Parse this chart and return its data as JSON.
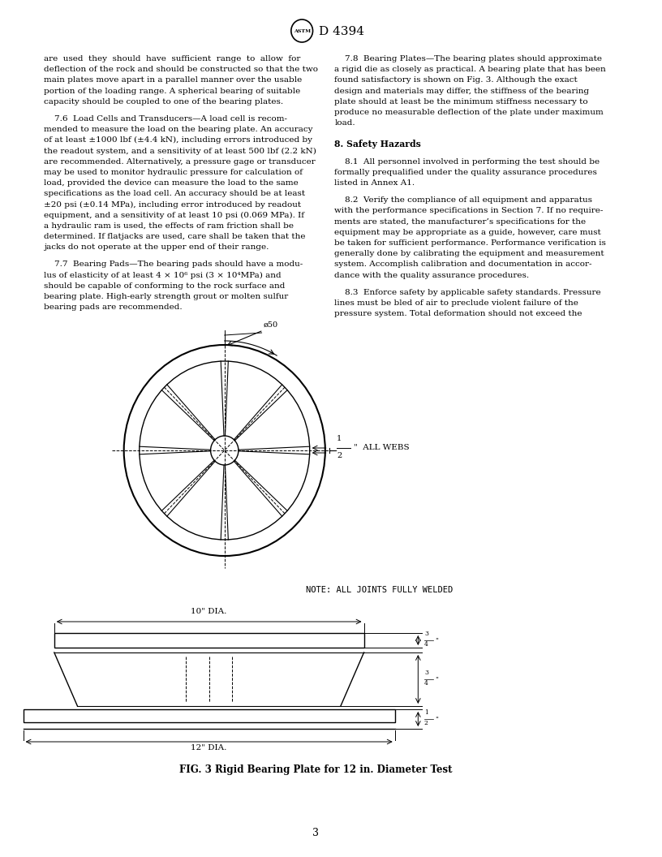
{
  "page_width": 8.16,
  "page_height": 10.56,
  "background_color": "#ffffff",
  "text_color": "#000000",
  "header_logo_text": "Ⓜ D 4394",
  "left_column_text": [
    "are  used  they  should  have  sufficient  range  to  allow  for",
    "deflection of the rock and should be constructed so that the two",
    "main plates move apart in a parallel manner over the usable",
    "portion of the loading range. A spherical bearing of suitable",
    "capacity should be coupled to one of the bearing plates.",
    "",
    "    7.6  Load Cells and Transducers—A load cell is recom-",
    "mended to measure the load on the bearing plate. An accuracy",
    "of at least ±1000 lbf (±4.4 kN), including errors introduced by",
    "the readout system, and a sensitivity of at least 500 lbf (2.2 kN)",
    "are recommended. Alternatively, a pressure gage or transducer",
    "may be used to monitor hydraulic pressure for calculation of",
    "load, provided the device can measure the load to the same",
    "specifications as the load cell. An accuracy should be at least",
    "±20 psi (±0.14 MPa), including error introduced by readout",
    "equipment, and a sensitivity of at least 10 psi (0.069 MPa). If",
    "a hydraulic ram is used, the effects of ram friction shall be",
    "determined. If flatjacks are used, care shall be taken that the",
    "jacks do not operate at the upper end of their range.",
    "",
    "    7.7  Bearing Pads—The bearing pads should have a modu-",
    "lus of elasticity of at least 4 × 10⁶ psi (3 × 10⁴MPa) and",
    "should be capable of conforming to the rock surface and",
    "bearing plate. High-early strength grout or molten sulfur",
    "bearing pads are recommended."
  ],
  "right_column_text": [
    "    7.8  Bearing Plates—The bearing plates should approximate",
    "a rigid die as closely as practical. A bearing plate that has been",
    "found satisfactory is shown on Fig. 3. Although the exact",
    "design and materials may differ, the stiffness of the bearing",
    "plate should at least be the minimum stiffness necessary to",
    "produce no measurable deflection of the plate under maximum",
    "load.",
    "",
    "8. Safety Hazards",
    "",
    "    8.1  All personnel involved in performing the test should be",
    "formally prequalified under the quality assurance procedures",
    "listed in Annex A1.",
    "",
    "    8.2  Verify the compliance of all equipment and apparatus",
    "with the performance specifications in Section 7. If no require-",
    "ments are stated, the manufacturer’s specifications for the",
    "equipment may be appropriate as a guide, however, care must",
    "be taken for sufficient performance. Performance verification is",
    "generally done by calibrating the equipment and measurement",
    "system. Accomplish calibration and documentation in accor-",
    "dance with the quality assurance procedures.",
    "",
    "    8.3  Enforce safety by applicable safety standards. Pressure",
    "lines must be bled of air to preclude violent failure of the",
    "pressure system. Total deformation should not exceed the"
  ],
  "note_text": "NOTE: ALL JOINTS FULLY WELDED",
  "fig_caption": "FIG. 3 Rigid Bearing Plate for 12 in. Diameter Test",
  "page_number": "3",
  "dim_45": "ø50",
  "dim_half": "1\n— ALL WEBS\n2",
  "dim_10dia": "10\" DIA.",
  "dim_12dia": "12\" DIA."
}
